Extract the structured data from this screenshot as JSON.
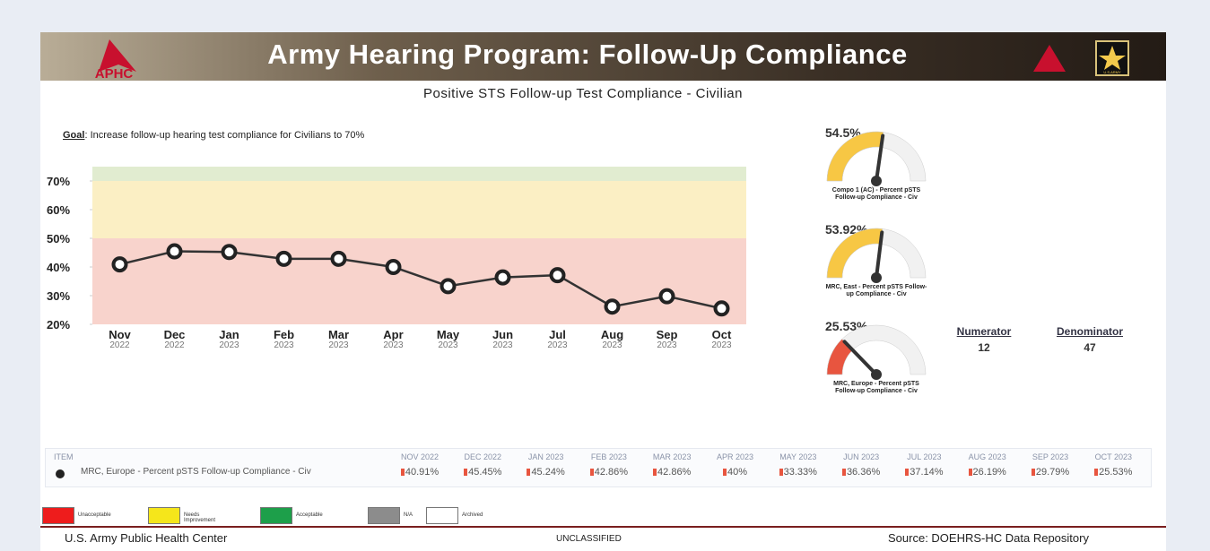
{
  "header": {
    "title": "Army Hearing Program: Follow-Up Compliance",
    "logo_text": "APHC",
    "army_text": "U.S.ARMY"
  },
  "subtitle": "Positive STS Follow-up Test Compliance - Civilian",
  "goal": {
    "label": "Goal",
    "text": ":  Increase follow-up hearing test compliance for Civilians to 70%"
  },
  "chart_data": {
    "type": "line",
    "categories": [
      "Nov",
      "Dec",
      "Jan",
      "Feb",
      "Mar",
      "Apr",
      "May",
      "Jun",
      "Jul",
      "Aug",
      "Sep",
      "Oct"
    ],
    "years": [
      "2022",
      "2022",
      "2023",
      "2023",
      "2023",
      "2023",
      "2023",
      "2023",
      "2023",
      "2023",
      "2023",
      "2023"
    ],
    "series": [
      {
        "name": "MRC, Europe - Percent pSTS Follow-up Compliance - Civ",
        "color": "#333333",
        "values": [
          40.91,
          45.45,
          45.24,
          42.86,
          42.86,
          40,
          33.33,
          36.36,
          37.14,
          26.19,
          29.79,
          25.53
        ]
      }
    ],
    "ylim": [
      20,
      75
    ],
    "yticks": [
      {
        "value": 20,
        "label": "20%"
      },
      {
        "value": 30,
        "label": "30%"
      },
      {
        "value": 40,
        "label": "40%"
      },
      {
        "value": 50,
        "label": "50%"
      },
      {
        "value": 60,
        "label": "60%"
      },
      {
        "value": 70,
        "label": "70%"
      }
    ],
    "bands": [
      {
        "from": 20,
        "to": 50,
        "color": "#f8d3cc"
      },
      {
        "from": 50,
        "to": 70,
        "color": "#fbefc4"
      },
      {
        "from": 70,
        "to": 75,
        "color": "#e1ecd0"
      }
    ]
  },
  "gauges": {
    "range": [
      0,
      100
    ],
    "items": [
      {
        "value": 54.5,
        "label": "54.5%",
        "name": "Compo 1 (AC) - Percent pSTS Follow-up Compliance - Civ",
        "color": "#f7c744"
      },
      {
        "value": 53.92,
        "label": "53.92%",
        "name": "MRC, East - Percent pSTS Follow-up Compliance - Civ",
        "color": "#f7c744"
      },
      {
        "value": 25.53,
        "label": "25.53%",
        "name": "MRC, Europe - Percent pSTS Follow-up Compliance - Civ",
        "color": "#e8553f"
      }
    ]
  },
  "numerator": {
    "label": "Numerator",
    "value": 12
  },
  "denominator": {
    "label": "Denominator",
    "value": 47
  },
  "table": {
    "header": [
      "ITEM",
      "NOV 2022",
      "DEC 2022",
      "JAN 2023",
      "FEB 2023",
      "MAR 2023",
      "APR 2023",
      "MAY 2023",
      "JUN 2023",
      "JUL 2023",
      "AUG 2023",
      "SEP 2023",
      "OCT 2023"
    ],
    "row_name": "MRC, Europe - Percent pSTS Follow-up Compliance - Civ",
    "cells": [
      "40.91%",
      "45.45%",
      "45.24%",
      "42.86%",
      "42.86%",
      "40%",
      "33.33%",
      "36.36%",
      "37.14%",
      "26.19%",
      "29.79%",
      "25.53%"
    ]
  },
  "legend": [
    {
      "label": "Unacceptable",
      "color": "#ee1c1c"
    },
    {
      "label": "Needs Improvement",
      "color": "#f5e61b"
    },
    {
      "label": "Acceptable",
      "color": "#1d9f4a"
    },
    {
      "label": "N/A",
      "color": "#8c8c8c"
    },
    {
      "label": "Archived",
      "color": "#ffffff"
    }
  ],
  "footer": {
    "left": "U.S. Army Public Health Center",
    "center": "UNCLASSIFIED",
    "right": "Source:  DOEHRS-HC Data Repository"
  }
}
